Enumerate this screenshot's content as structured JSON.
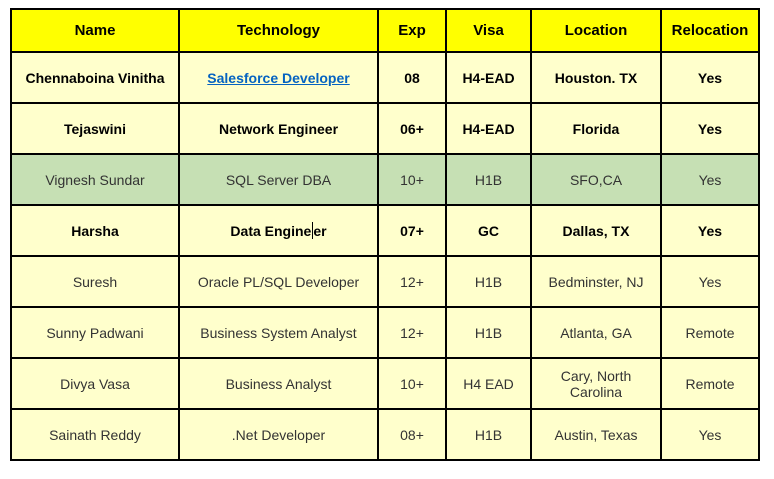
{
  "table": {
    "headers": [
      "Name",
      "Technology",
      "Exp",
      "Visa",
      "Location",
      "Relocation"
    ],
    "rows": [
      {
        "name": "Chennaboina Vinitha",
        "technology": "Salesforce Developer",
        "tech_link": true,
        "exp": "08",
        "visa": "H4-EAD",
        "location": "Houston. TX",
        "relocation": "Yes",
        "bold": true,
        "highlight": false
      },
      {
        "name": "Tejaswini",
        "technology": "Network Engineer",
        "exp": "06+",
        "visa": "H4-EAD",
        "location": "Florida",
        "relocation": "Yes",
        "bold": true,
        "highlight": false
      },
      {
        "name": "Vignesh Sundar",
        "technology": "SQL Server DBA",
        "exp": "10+",
        "visa": "H1B",
        "location": "SFO,CA",
        "relocation": "Yes",
        "bold": false,
        "highlight": true
      },
      {
        "name": "Harsha",
        "technology": "Data Engineer",
        "caret_after": "Data Engine",
        "exp": "07+",
        "visa": "GC",
        "location": "Dallas, TX",
        "relocation": "Yes",
        "bold": true,
        "highlight": false
      },
      {
        "name": "Suresh",
        "technology": "Oracle PL/SQL Developer",
        "exp": "12+",
        "visa": "H1B",
        "location": "Bedminster, NJ",
        "relocation": "Yes",
        "bold": false,
        "highlight": false
      },
      {
        "name": "Sunny Padwani",
        "technology": "Business System Analyst",
        "exp": "12+",
        "visa": "H1B",
        "location": "Atlanta, GA",
        "relocation": "Remote",
        "bold": false,
        "highlight": false
      },
      {
        "name": "Divya Vasa",
        "technology": "Business Analyst",
        "exp": "10+",
        "visa": "H4 EAD",
        "location": "Cary, North Carolina",
        "relocation": "Remote",
        "bold": false,
        "highlight": false
      },
      {
        "name": "Sainath Reddy",
        "technology": ".Net Developer",
        "exp": "08+",
        "visa": "H1B",
        "location": "Austin, Texas",
        "relocation": "Yes",
        "bold": false,
        "highlight": false
      }
    ],
    "colors": {
      "header_bg": "#FFFF00",
      "row_bg": "#FFFFCC",
      "highlight_bg": "#C6E0B4",
      "border": "#000000",
      "link": "#0563C1"
    }
  }
}
